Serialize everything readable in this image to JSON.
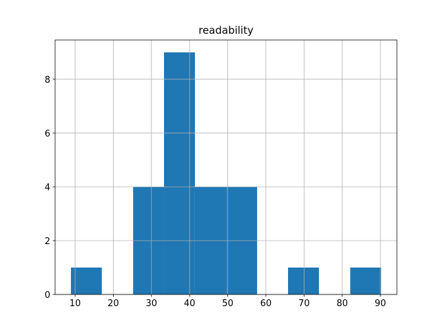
{
  "chart_data": {
    "type": "histogram",
    "title": "readability",
    "bins": [
      8.9,
      17.0,
      25.2,
      33.3,
      41.4,
      49.6,
      57.7,
      65.8,
      73.9,
      82.1,
      90.2
    ],
    "values": [
      1,
      0,
      4,
      9,
      4,
      4,
      0,
      1,
      0,
      1
    ],
    "color": "#1f77b4",
    "xlim": [
      4.76,
      94.33
    ],
    "xticks": [
      10,
      20,
      30,
      40,
      50,
      60,
      70,
      80,
      90
    ],
    "ylim": [
      0,
      9.46
    ],
    "yticks": [
      0,
      2,
      4,
      6,
      8
    ],
    "grid": true
  }
}
